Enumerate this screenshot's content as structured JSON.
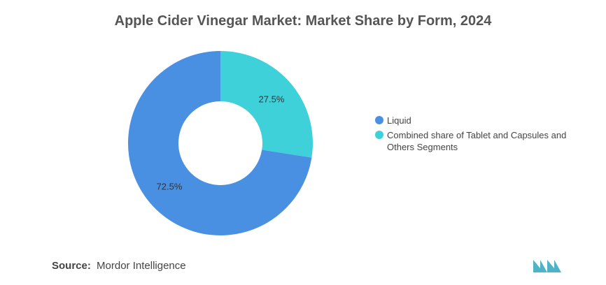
{
  "chart_data": {
    "type": "pie",
    "title": "Apple Cider Vinegar Market: Market Share by Form, 2024",
    "categories": [
      "Liquid",
      "Combined share of Tablet and Capsules and Others Segments"
    ],
    "values": [
      72.5,
      27.5
    ],
    "labels": [
      "72.5%",
      "27.5%"
    ],
    "colors": [
      "#4a90e2",
      "#3fd1d9"
    ],
    "legend_position": "right",
    "legend": [
      {
        "label": "Liquid",
        "color": "#4a90e2"
      },
      {
        "label": "Combined share of Tablet and Capsules and Others Segments",
        "color": "#3fd1d9"
      }
    ]
  },
  "source": {
    "label": "Source:",
    "text": "Mordor Intelligence"
  },
  "logo": {
    "icon": "mordor-intelligence-logo-icon",
    "color": "#4fb3c8"
  }
}
